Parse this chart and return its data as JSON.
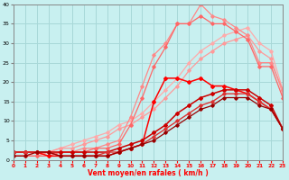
{
  "xlabel": "Vent moyen/en rafales ( km/h )",
  "ylim": [
    0,
    40
  ],
  "xlim": [
    0,
    23
  ],
  "yticks": [
    0,
    5,
    10,
    15,
    20,
    25,
    30,
    35,
    40
  ],
  "xticks": [
    0,
    1,
    2,
    3,
    4,
    5,
    6,
    7,
    8,
    9,
    10,
    11,
    12,
    13,
    14,
    15,
    16,
    17,
    18,
    19,
    20,
    21,
    22,
    23
  ],
  "background_color": "#c8f0f0",
  "grid_color": "#a8d8d8",
  "series": [
    {
      "color": "#ffaaaa",
      "lw": 0.9,
      "marker": "D",
      "ms": 1.8,
      "x": [
        0,
        1,
        2,
        3,
        4,
        5,
        6,
        7,
        8,
        9,
        10,
        11,
        12,
        13,
        14,
        15,
        16,
        17,
        18,
        19,
        20,
        21,
        22,
        23
      ],
      "y": [
        1,
        1,
        2,
        2,
        3,
        4,
        5,
        6,
        7,
        9,
        10,
        12,
        15,
        18,
        21,
        25,
        28,
        30,
        32,
        33,
        34,
        30,
        28,
        18
      ]
    },
    {
      "color": "#ff9999",
      "lw": 0.9,
      "marker": "D",
      "ms": 1.8,
      "x": [
        0,
        1,
        2,
        3,
        4,
        5,
        6,
        7,
        8,
        9,
        10,
        11,
        12,
        13,
        14,
        15,
        16,
        17,
        18,
        19,
        20,
        21,
        22,
        23
      ],
      "y": [
        1,
        1,
        2,
        2,
        3,
        3,
        4,
        5,
        6,
        8,
        9,
        11,
        13,
        16,
        19,
        23,
        26,
        28,
        30,
        31,
        32,
        28,
        26,
        17
      ]
    },
    {
      "color": "#ff8888",
      "lw": 0.9,
      "marker": "D",
      "ms": 1.8,
      "x": [
        0,
        1,
        2,
        3,
        4,
        5,
        6,
        7,
        8,
        9,
        10,
        11,
        12,
        13,
        14,
        15,
        16,
        17,
        18,
        19,
        20,
        21,
        22,
        23
      ],
      "y": [
        1,
        1,
        1,
        2,
        2,
        2,
        3,
        3,
        4,
        5,
        11,
        19,
        27,
        30,
        35,
        35,
        40,
        37,
        36,
        34,
        32,
        25,
        25,
        18
      ]
    },
    {
      "color": "#ff6666",
      "lw": 0.9,
      "marker": "D",
      "ms": 1.8,
      "x": [
        0,
        1,
        2,
        3,
        4,
        5,
        6,
        7,
        8,
        9,
        10,
        11,
        12,
        13,
        14,
        15,
        16,
        17,
        18,
        19,
        20,
        21,
        22,
        23
      ],
      "y": [
        1,
        1,
        1,
        1,
        2,
        2,
        2,
        3,
        3,
        4,
        9,
        16,
        24,
        29,
        35,
        35,
        37,
        35,
        35,
        33,
        31,
        24,
        24,
        16
      ]
    },
    {
      "color": "#ff0000",
      "lw": 1.1,
      "marker": "D",
      "ms": 2.0,
      "x": [
        0,
        1,
        2,
        3,
        4,
        5,
        6,
        7,
        8,
        9,
        10,
        11,
        12,
        13,
        14,
        15,
        16,
        17,
        18,
        19,
        20,
        21,
        22,
        23
      ],
      "y": [
        2,
        2,
        2,
        1,
        1,
        1,
        1,
        1,
        1,
        2,
        3,
        4,
        15,
        21,
        21,
        20,
        21,
        19,
        19,
        18,
        17,
        15,
        13,
        8
      ]
    },
    {
      "color": "#cc0000",
      "lw": 1.1,
      "marker": "D",
      "ms": 2.0,
      "x": [
        0,
        1,
        2,
        3,
        4,
        5,
        6,
        7,
        8,
        9,
        10,
        11,
        12,
        13,
        14,
        15,
        16,
        17,
        18,
        19,
        20,
        21,
        22,
        23
      ],
      "y": [
        2,
        2,
        2,
        2,
        2,
        2,
        2,
        2,
        2,
        3,
        4,
        5,
        7,
        9,
        12,
        14,
        16,
        17,
        18,
        18,
        18,
        16,
        14,
        8
      ]
    },
    {
      "color": "#dd3333",
      "lw": 1.0,
      "marker": "D",
      "ms": 1.8,
      "x": [
        0,
        1,
        2,
        3,
        4,
        5,
        6,
        7,
        8,
        9,
        10,
        11,
        12,
        13,
        14,
        15,
        16,
        17,
        18,
        19,
        20,
        21,
        22,
        23
      ],
      "y": [
        2,
        2,
        2,
        2,
        1,
        1,
        1,
        1,
        2,
        2,
        3,
        4,
        6,
        8,
        10,
        12,
        14,
        15,
        17,
        17,
        17,
        15,
        13,
        8
      ]
    },
    {
      "color": "#990000",
      "lw": 0.9,
      "marker": "D",
      "ms": 1.8,
      "x": [
        0,
        1,
        2,
        3,
        4,
        5,
        6,
        7,
        8,
        9,
        10,
        11,
        12,
        13,
        14,
        15,
        16,
        17,
        18,
        19,
        20,
        21,
        22,
        23
      ],
      "y": [
        1,
        1,
        2,
        2,
        1,
        1,
        1,
        1,
        1,
        2,
        3,
        4,
        5,
        7,
        9,
        11,
        13,
        14,
        16,
        16,
        16,
        14,
        13,
        8
      ]
    }
  ]
}
